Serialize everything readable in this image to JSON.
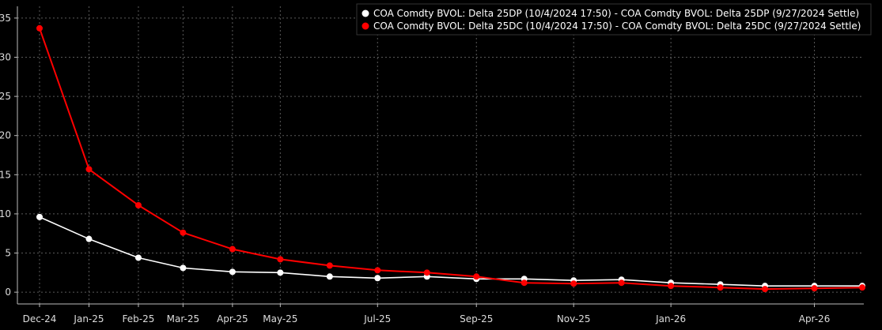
{
  "chart_data": {
    "type": "line",
    "x": [
      "2024-12",
      "2025-01",
      "2025-02",
      "2025-03",
      "2025-04",
      "2025-05",
      "2025-06",
      "2025-07",
      "2025-08",
      "2025-09",
      "2025-10",
      "2025-11",
      "2025-12",
      "2026-01",
      "2026-02",
      "2026-03",
      "2026-04",
      "2026-05"
    ],
    "x_tick_labels": [
      "Dec-24",
      "Jan-25",
      "Feb-25",
      "Mar-25",
      "Apr-25",
      "May-25",
      "Jul-25",
      "Sep-25",
      "Nov-25",
      "Jan-26",
      "Apr-26"
    ],
    "x_tick_dates": [
      "2024-12",
      "2025-01",
      "2025-02",
      "2025-03",
      "2025-04",
      "2025-05",
      "2025-07",
      "2025-09",
      "2025-11",
      "2026-01",
      "2026-04"
    ],
    "y_ticks": [
      0,
      5,
      10,
      15,
      20,
      25,
      30,
      35
    ],
    "ylim": [
      -1.5,
      36.5
    ],
    "grid": true,
    "legend_position": "top-right",
    "series": [
      {
        "name": "COA Comdty BVOL: Delta 25DP (10/4/2024 17:50) - COA Comdty BVOL: Delta 25DP (9/27/2024 Settle)",
        "color": "#ffffff",
        "x": [
          "2024-12",
          "2025-01",
          "2025-02",
          "2025-03",
          "2025-04",
          "2025-05",
          "2025-06",
          "2025-07",
          "2025-08",
          "2025-09",
          "2025-10",
          "2025-11",
          "2025-12",
          "2026-01",
          "2026-02",
          "2026-03",
          "2026-04",
          "2026-05"
        ],
        "values": [
          9.6,
          6.8,
          4.4,
          3.1,
          2.6,
          2.5,
          2.0,
          1.8,
          2.0,
          1.7,
          1.7,
          1.5,
          1.6,
          1.2,
          1.0,
          0.8,
          0.8,
          0.8
        ]
      },
      {
        "name": "COA Comdty BVOL: Delta 25DC (10/4/2024 17:50) - COA Comdty BVOL: Delta 25DC (9/27/2024 Settle)",
        "color": "#ff0000",
        "x": [
          "2024-12",
          "2025-01",
          "2025-02",
          "2025-03",
          "2025-04",
          "2025-05",
          "2025-06",
          "2025-07",
          "2025-08",
          "2025-09",
          "2025-10",
          "2025-11",
          "2025-12",
          "2026-01",
          "2026-02",
          "2026-03",
          "2026-04",
          "2026-05"
        ],
        "values": [
          33.7,
          15.7,
          11.1,
          7.6,
          5.5,
          4.2,
          3.4,
          2.8,
          2.5,
          2.0,
          1.2,
          1.1,
          1.2,
          0.8,
          0.6,
          0.4,
          0.5,
          0.6
        ]
      }
    ]
  }
}
